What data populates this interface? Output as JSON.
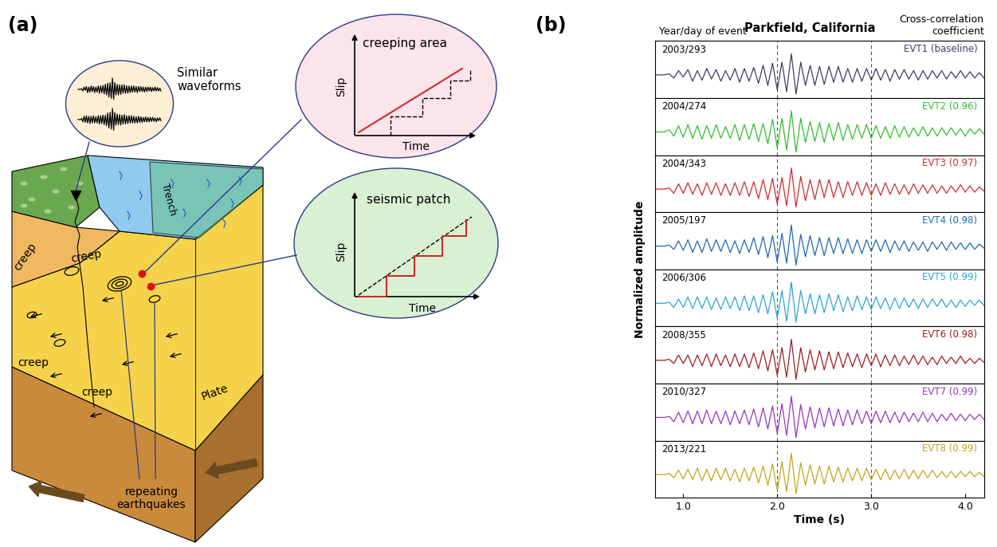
{
  "diagram": {
    "label": "(a)",
    "waveform_bubble": "Similar\nwaveforms",
    "creeping_area": {
      "title": "creeping area",
      "ylabel": "Slip",
      "xlabel": "Time"
    },
    "seismic_patch": {
      "title": "seismic patch",
      "ylabel": "Slip",
      "xlabel": "Time"
    },
    "creep_labels": [
      "creep",
      "creep",
      "creep",
      "creep"
    ],
    "trench": "Trench",
    "plate": "Plate",
    "repeating_earthquakes": "repeating\nearthquakes"
  },
  "chart_data": {
    "type": "line",
    "panel_label": "(b)",
    "title": "Parkfield, California",
    "left_header": "Year/day of event",
    "right_header": "Cross-correlation\ncoefficient",
    "xlabel": "Time (s)",
    "ylabel": "Normalized amplitude",
    "xlim": [
      0.7,
      4.2
    ],
    "xticks": [
      {
        "value": 1.0,
        "label": "1.0"
      },
      {
        "value": 2.0,
        "label": "2.0"
      },
      {
        "value": 3.0,
        "label": "3.0"
      },
      {
        "value": 4.0,
        "label": "4.0"
      }
    ],
    "ylim": [
      -1.1,
      1.6
    ],
    "tick_labels": "x",
    "vlines": [
      2.0,
      3.0
    ],
    "x": [
      0.7,
      0.75,
      0.8,
      0.85,
      0.9,
      0.95,
      1.0,
      1.05,
      1.1,
      1.15,
      1.2,
      1.25,
      1.3,
      1.35,
      1.4,
      1.45,
      1.5,
      1.55,
      1.6,
      1.65,
      1.7,
      1.75,
      1.8,
      1.85,
      1.9,
      1.95,
      2.0,
      2.05,
      2.1,
      2.15,
      2.2,
      2.25,
      2.3,
      2.35,
      2.4,
      2.45,
      2.5,
      2.55,
      2.6,
      2.65,
      2.7,
      2.75,
      2.8,
      2.85,
      2.9,
      2.95,
      3.0,
      3.05,
      3.1,
      3.15,
      3.2,
      3.25,
      3.3,
      3.35,
      3.4,
      3.45,
      3.5,
      3.55,
      3.6,
      3.65,
      3.7,
      3.75,
      3.8,
      3.85,
      3.9,
      3.95,
      4.0,
      4.05,
      4.1,
      4.15,
      4.2
    ],
    "series": [
      {
        "name": "EVT1 (baseline)",
        "event": "2003/293",
        "color": "#3b3b6e",
        "values": [
          0,
          0,
          0,
          0.05,
          -0.15,
          0.2,
          -0.1,
          0.25,
          -0.3,
          0.2,
          -0.25,
          0.3,
          -0.2,
          0.25,
          -0.3,
          0.2,
          -0.25,
          0.3,
          -0.35,
          0.3,
          -0.3,
          0.35,
          -0.4,
          0.45,
          -0.5,
          0.55,
          -0.7,
          0.6,
          -0.8,
          1.0,
          -0.9,
          0.6,
          -0.5,
          0.45,
          -0.5,
          0.4,
          -0.45,
          0.4,
          -0.35,
          0.4,
          -0.35,
          0.3,
          -0.35,
          0.3,
          -0.3,
          0.3,
          -0.25,
          0.3,
          -0.25,
          0.25,
          -0.3,
          0.25,
          -0.2,
          0.25,
          -0.2,
          0.2,
          -0.25,
          0.2,
          -0.2,
          0.2,
          -0.15,
          0.2,
          -0.2,
          0.15,
          -0.15,
          0.2,
          -0.15,
          0.15,
          -0.15,
          0.1,
          -0.15
        ]
      },
      {
        "name": "EVT2 (0.96)",
        "event": "2004/274",
        "color": "#2fbf2f",
        "values": [
          0,
          0,
          0,
          0.1,
          -0.2,
          0.3,
          -0.25,
          0.35,
          -0.3,
          0.3,
          -0.35,
          0.3,
          -0.3,
          0.35,
          -0.3,
          0.25,
          -0.3,
          0.35,
          -0.4,
          0.35,
          -0.35,
          0.4,
          -0.45,
          0.4,
          -0.55,
          0.6,
          -0.75,
          0.65,
          -0.85,
          1.0,
          -0.95,
          0.65,
          -0.5,
          0.5,
          -0.45,
          0.45,
          -0.5,
          0.4,
          -0.4,
          0.45,
          -0.4,
          0.35,
          -0.35,
          0.35,
          -0.3,
          0.35,
          -0.3,
          0.3,
          -0.3,
          0.25,
          -0.3,
          0.3,
          -0.25,
          0.25,
          -0.25,
          0.2,
          -0.2,
          0.25,
          -0.2,
          0.2,
          -0.2,
          0.2,
          -0.15,
          0.2,
          -0.15,
          0.15,
          -0.2,
          0.15,
          -0.1,
          0.15,
          -0.1
        ]
      },
      {
        "name": "EVT3 (0.97)",
        "event": "2004/343",
        "color": "#d42a2a",
        "values": [
          0,
          0,
          0,
          0.05,
          -0.2,
          0.25,
          -0.2,
          0.3,
          -0.25,
          0.25,
          -0.3,
          0.3,
          -0.25,
          0.3,
          -0.3,
          0.25,
          -0.3,
          0.3,
          -0.3,
          0.35,
          -0.35,
          0.35,
          -0.45,
          0.45,
          -0.5,
          0.5,
          -0.7,
          0.55,
          -0.8,
          1.0,
          -0.85,
          0.6,
          -0.55,
          0.45,
          -0.5,
          0.45,
          -0.4,
          0.45,
          -0.4,
          0.35,
          -0.4,
          0.35,
          -0.3,
          0.35,
          -0.3,
          0.3,
          -0.3,
          0.25,
          -0.3,
          0.3,
          -0.25,
          0.25,
          -0.25,
          0.2,
          -0.25,
          0.25,
          -0.2,
          0.2,
          -0.2,
          0.2,
          -0.2,
          0.15,
          -0.2,
          0.15,
          -0.15,
          0.2,
          -0.15,
          0.15,
          -0.15,
          0.1,
          -0.1
        ]
      },
      {
        "name": "EVT4 (0.98)",
        "event": "2005/197",
        "color": "#1f68b0",
        "values": [
          0,
          0,
          0,
          0.05,
          -0.15,
          0.25,
          -0.2,
          0.3,
          -0.3,
          0.25,
          -0.3,
          0.35,
          -0.25,
          0.3,
          -0.25,
          0.3,
          -0.3,
          0.25,
          -0.35,
          0.3,
          -0.3,
          0.4,
          -0.4,
          0.45,
          -0.55,
          0.5,
          -0.75,
          0.6,
          -0.8,
          1.0,
          -0.9,
          0.55,
          -0.5,
          0.5,
          -0.45,
          0.4,
          -0.45,
          0.4,
          -0.35,
          0.4,
          -0.35,
          0.35,
          -0.35,
          0.3,
          -0.35,
          0.3,
          -0.25,
          0.3,
          -0.25,
          0.3,
          -0.3,
          0.25,
          -0.2,
          0.25,
          -0.25,
          0.2,
          -0.2,
          0.2,
          -0.25,
          0.2,
          -0.15,
          0.2,
          -0.2,
          0.2,
          -0.15,
          0.15,
          -0.15,
          0.15,
          -0.15,
          0.1,
          -0.1
        ]
      },
      {
        "name": "EVT5 (0.99)",
        "event": "2006/306",
        "color": "#2aa6d6",
        "values": [
          0,
          0,
          0,
          0.05,
          -0.2,
          0.2,
          -0.2,
          0.3,
          -0.25,
          0.3,
          -0.25,
          0.3,
          -0.3,
          0.25,
          -0.3,
          0.3,
          -0.25,
          0.3,
          -0.35,
          0.35,
          -0.35,
          0.35,
          -0.45,
          0.4,
          -0.5,
          0.55,
          -0.7,
          0.6,
          -0.85,
          1.0,
          -0.9,
          0.6,
          -0.5,
          0.45,
          -0.5,
          0.4,
          -0.45,
          0.45,
          -0.35,
          0.4,
          -0.4,
          0.3,
          -0.35,
          0.35,
          -0.3,
          0.3,
          -0.3,
          0.3,
          -0.25,
          0.25,
          -0.3,
          0.25,
          -0.25,
          0.25,
          -0.2,
          0.2,
          -0.25,
          0.2,
          -0.2,
          0.2,
          -0.15,
          0.2,
          -0.2,
          0.15,
          -0.2,
          0.15,
          -0.15,
          0.15,
          -0.1,
          0.15,
          -0.1
        ]
      },
      {
        "name": "EVT6 (0.98)",
        "event": "2008/355",
        "color": "#a11c1c",
        "values": [
          0,
          0,
          0,
          0.05,
          -0.15,
          0.25,
          -0.15,
          0.25,
          -0.3,
          0.25,
          -0.25,
          0.3,
          -0.3,
          0.3,
          -0.25,
          0.25,
          -0.3,
          0.3,
          -0.3,
          0.3,
          -0.35,
          0.35,
          -0.4,
          0.45,
          -0.5,
          0.5,
          -0.7,
          0.6,
          -0.8,
          1.0,
          -0.9,
          0.6,
          -0.55,
          0.5,
          -0.45,
          0.45,
          -0.45,
          0.4,
          -0.4,
          0.4,
          -0.35,
          0.35,
          -0.3,
          0.3,
          -0.35,
          0.3,
          -0.25,
          0.3,
          -0.3,
          0.25,
          -0.25,
          0.25,
          -0.25,
          0.2,
          -0.2,
          0.25,
          -0.2,
          0.2,
          -0.2,
          0.15,
          -0.2,
          0.2,
          -0.15,
          0.15,
          -0.15,
          0.2,
          -0.15,
          0.1,
          -0.15,
          0.1,
          -0.1
        ]
      },
      {
        "name": "EVT7 (0.99)",
        "event": "2010/327",
        "color": "#9a32c6",
        "values": [
          0,
          0,
          0,
          0.05,
          -0.2,
          0.25,
          -0.25,
          0.3,
          -0.3,
          0.3,
          -0.3,
          0.35,
          -0.3,
          0.3,
          -0.3,
          0.3,
          -0.35,
          0.3,
          -0.3,
          0.35,
          -0.35,
          0.4,
          -0.45,
          0.45,
          -0.55,
          0.55,
          -0.75,
          0.65,
          -0.85,
          1.0,
          -0.95,
          0.6,
          -0.55,
          0.5,
          -0.5,
          0.45,
          -0.45,
          0.45,
          -0.4,
          0.4,
          -0.4,
          0.35,
          -0.35,
          0.35,
          -0.3,
          0.3,
          -0.3,
          0.3,
          -0.25,
          0.3,
          -0.25,
          0.25,
          -0.25,
          0.25,
          -0.2,
          0.2,
          -0.2,
          0.25,
          -0.2,
          0.2,
          -0.2,
          0.15,
          -0.15,
          0.2,
          -0.15,
          0.15,
          -0.15,
          0.15,
          -0.1,
          0.15,
          -0.1
        ]
      },
      {
        "name": "EVT8 (0.99)",
        "event": "2013/221",
        "color": "#c5a21e",
        "values": [
          0,
          0,
          0,
          0.05,
          -0.15,
          0.2,
          -0.2,
          0.25,
          -0.25,
          0.3,
          -0.3,
          0.25,
          -0.3,
          0.3,
          -0.25,
          0.3,
          -0.3,
          0.25,
          -0.35,
          0.3,
          -0.3,
          0.35,
          -0.4,
          0.4,
          -0.5,
          0.5,
          -0.75,
          0.6,
          -0.8,
          1.0,
          -0.9,
          0.55,
          -0.5,
          0.45,
          -0.45,
          0.4,
          -0.45,
          0.4,
          -0.35,
          0.35,
          -0.35,
          0.3,
          -0.3,
          0.3,
          -0.3,
          0.3,
          -0.25,
          0.25,
          -0.25,
          0.25,
          -0.25,
          0.2,
          -0.2,
          0.25,
          -0.2,
          0.2,
          -0.2,
          0.2,
          -0.15,
          0.2,
          -0.15,
          0.15,
          -0.15,
          0.15,
          -0.15,
          0.15,
          -0.1,
          0.15,
          -0.1,
          0.1,
          -0.1
        ]
      }
    ]
  }
}
